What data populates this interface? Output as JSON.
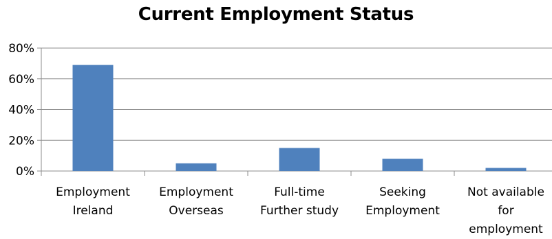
{
  "chart_data": {
    "type": "bar",
    "title": "Current Employment Status",
    "categories": [
      [
        "Employment",
        "Ireland"
      ],
      [
        "Employment",
        "Overseas"
      ],
      [
        "Full-time",
        "Further study"
      ],
      [
        "Seeking",
        "Employment"
      ],
      [
        "Not available",
        "for",
        "employment"
      ]
    ],
    "values": [
      69,
      5,
      15,
      8,
      2
    ],
    "ylim": [
      0,
      80
    ],
    "yticks": [
      "0%",
      "20%",
      "40%",
      "60%",
      "80%"
    ],
    "ytick_values": [
      0,
      20,
      40,
      60,
      80
    ],
    "bar_color": "#4f81bd",
    "grid": true,
    "legend": "none"
  }
}
